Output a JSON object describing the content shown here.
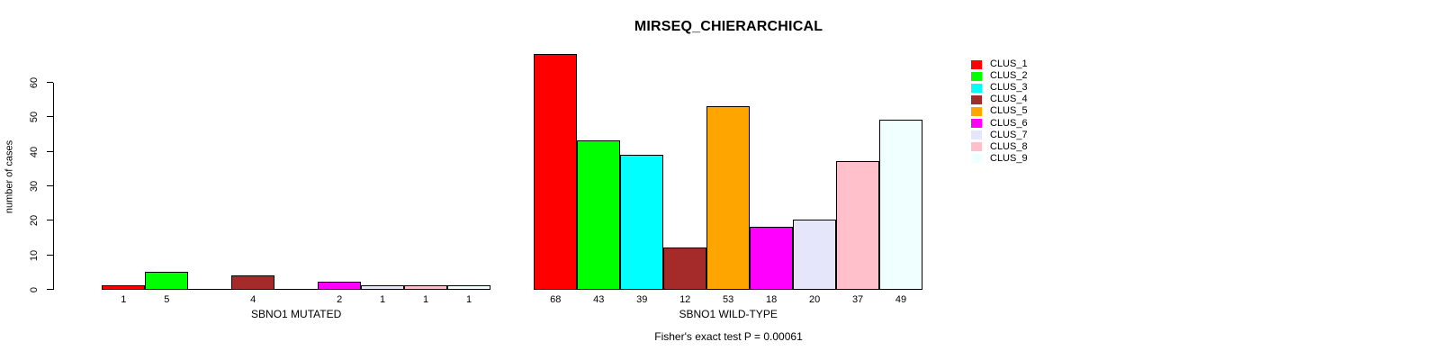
{
  "title": "MIRSEQ_CHIERARCHICAL",
  "footer": "Fisher's exact test P = 0.00061",
  "y_axis": {
    "label": "number of cases",
    "ticks": [
      0,
      10,
      20,
      30,
      40,
      50,
      60
    ]
  },
  "chart_data": {
    "type": "bar",
    "title": "MIRSEQ_CHIERARCHICAL",
    "ylabel": "number of cases",
    "xlabel_groups": [
      "SBNO1 MUTATED",
      "SBNO1 WILD-TYPE"
    ],
    "ylim": [
      0,
      68
    ],
    "yticks": [
      0,
      10,
      20,
      30,
      40,
      50,
      60
    ],
    "grid": false,
    "bar_value_labels": true,
    "zero_value_bars_drawn_as_flat_line": true,
    "legend_position": "top-right-inside",
    "annotation": "Fisher's exact test P = 0.00061",
    "series": [
      {
        "name": "CLUS_1",
        "color": "#ff0000"
      },
      {
        "name": "CLUS_2",
        "color": "#00ff00"
      },
      {
        "name": "CLUS_3",
        "color": "#00ffff"
      },
      {
        "name": "CLUS_4",
        "color": "#a52a2a"
      },
      {
        "name": "CLUS_5",
        "color": "#ffa500"
      },
      {
        "name": "CLUS_6",
        "color": "#ff00ff"
      },
      {
        "name": "CLUS_7",
        "color": "#e6e6fa"
      },
      {
        "name": "CLUS_8",
        "color": "#ffc0cb"
      },
      {
        "name": "CLUS_9",
        "color": "#f0ffff"
      }
    ],
    "groups": [
      {
        "label": "SBNO1 MUTATED",
        "values": [
          1,
          5,
          0,
          4,
          0,
          2,
          1,
          1,
          1
        ]
      },
      {
        "label": "SBNO1 WILD-TYPE",
        "values": [
          68,
          43,
          39,
          12,
          53,
          18,
          20,
          37,
          49
        ]
      }
    ]
  }
}
